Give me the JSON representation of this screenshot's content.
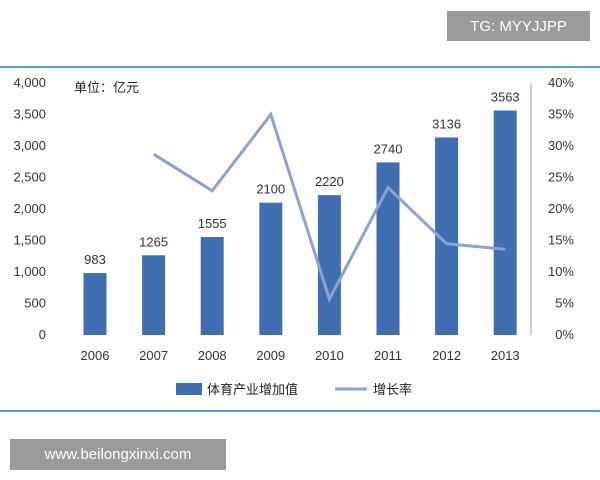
{
  "watermark_top": "TG: MYYJJPP",
  "watermark_bottom": "www.beilongxinxi.com",
  "colors": {
    "bar": "#3f6fb0",
    "line": "#8ea2cf",
    "frame": "#4aa3d6"
  },
  "chart_data": {
    "type": "bar",
    "unit_label": "单位：亿元",
    "categories": [
      "2006",
      "2007",
      "2008",
      "2009",
      "2010",
      "2011",
      "2012",
      "2013"
    ],
    "series": [
      {
        "name": "体育产业增加值",
        "type": "bar",
        "axis": "left",
        "values": [
          983,
          1265,
          1555,
          2100,
          2220,
          2740,
          3136,
          3563
        ]
      },
      {
        "name": "增长率",
        "type": "line",
        "axis": "right",
        "values": [
          null,
          28.7,
          22.9,
          35.0,
          5.7,
          23.4,
          14.5,
          13.6
        ]
      }
    ],
    "data_labels": [
      "983",
      "1265",
      "1555",
      "2100",
      "2220",
      "2740",
      "3136",
      "3563"
    ],
    "ylim_left": [
      0,
      4000
    ],
    "yticks_left": [
      "0",
      "500",
      "1,000",
      "1,500",
      "2,000",
      "2,500",
      "3,000",
      "3,500",
      "4,000"
    ],
    "ylim_right": [
      0,
      40
    ],
    "yticks_right": [
      "0%",
      "5%",
      "10%",
      "15%",
      "20%",
      "25%",
      "30%",
      "35%",
      "40%"
    ],
    "legend": "bottom",
    "grid": false
  }
}
